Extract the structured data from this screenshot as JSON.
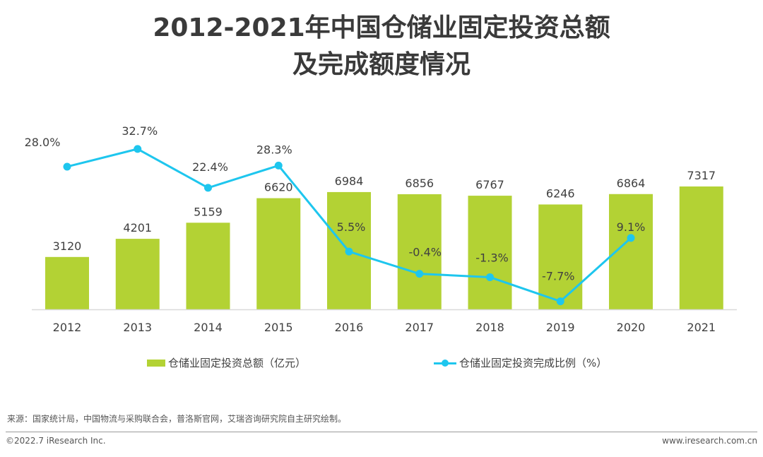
{
  "title": {
    "line1": "2012-2021年中国仓储业固定投资总额",
    "line2": "及完成额度情况"
  },
  "chart_data": {
    "type": "bar+line",
    "title": "2012-2021年中国仓储业固定投资总额及完成额度情况",
    "categories": [
      "2012",
      "2013",
      "2014",
      "2015",
      "2016",
      "2017",
      "2018",
      "2019",
      "2020",
      "2021"
    ],
    "series": [
      {
        "name": "仓储业固定投资总额（亿元）",
        "type": "bar",
        "color": "#b3d234",
        "values": [
          3120,
          4201,
          5159,
          6620,
          6984,
          6856,
          6767,
          6246,
          6864,
          7317
        ],
        "labels": [
          "3120",
          "4201",
          "5159",
          "6620",
          "6984",
          "6856",
          "6767",
          "6246",
          "6864",
          "7317"
        ]
      },
      {
        "name": "仓储业固定投资完成比例（%）",
        "type": "line",
        "color": "#1ec6ee",
        "values": [
          28.0,
          32.7,
          22.4,
          28.3,
          5.5,
          -0.4,
          -1.3,
          -7.7,
          9.1,
          null
        ],
        "labels": [
          "28.0%",
          "32.7%",
          "22.4%",
          "28.3%",
          "5.5%",
          "-0.4%",
          "-1.3%",
          "-7.7%",
          "9.1%",
          null
        ]
      }
    ],
    "xlabel": "",
    "ylabel": "",
    "ylim_bar": [
      0,
      7317
    ],
    "ylim_line": [
      -7.7,
      32.7
    ],
    "grid": false,
    "legend": "bottom-center"
  },
  "legend": {
    "bar_label": "仓储业固定投资总额（亿元）",
    "line_label": "仓储业固定投资完成比例（%）"
  },
  "footer": {
    "source": "来源：国家统计局，中国物流与采购联合会，普洛斯官网，艾瑞咨询研究院自主研究绘制。",
    "copyright": "©2022.7 iResearch Inc.",
    "website": "www.iresearch.com.cn"
  }
}
